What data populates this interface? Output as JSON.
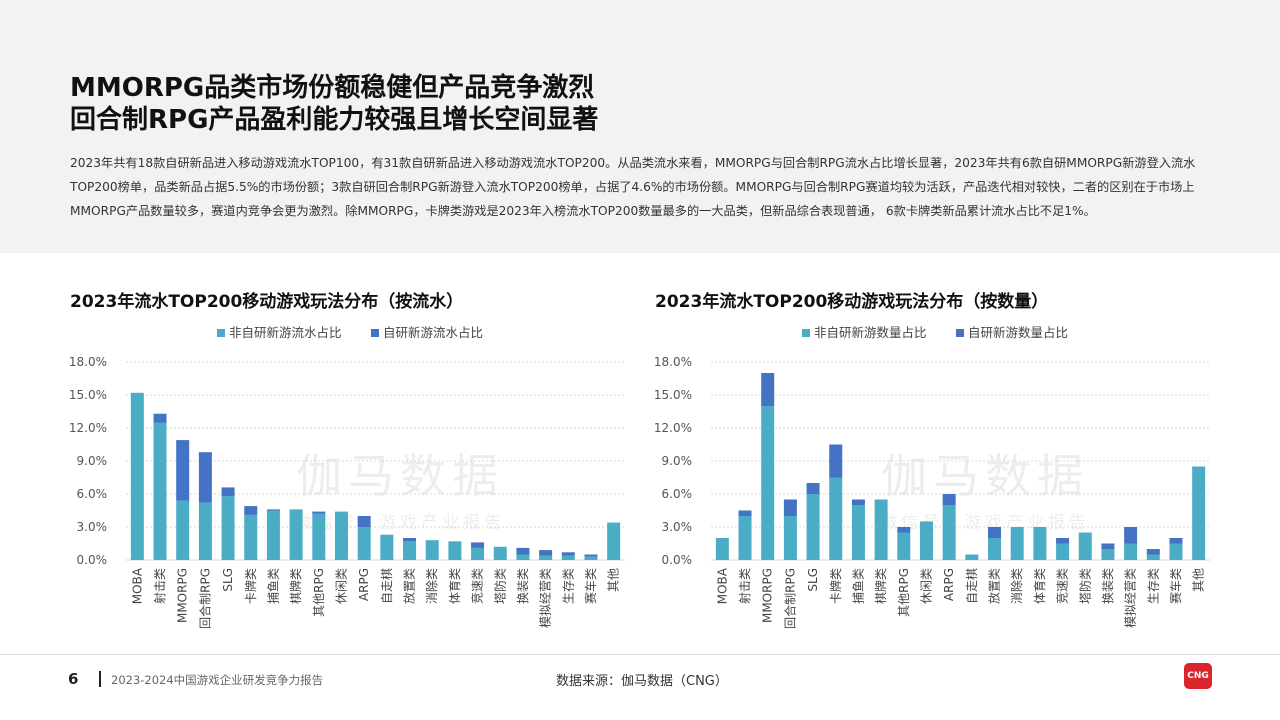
{
  "header": {
    "title_line1": "MMORPG品类市场份额稳健但产品竞争激烈",
    "title_line2": "回合制RPG产品盈利能力较强且增长空间显著",
    "description": "2023年共有18款自研新品进入移动游戏流水TOP100，有31款自研新品进入移动游戏流水TOP200。从品类流水来看，MMORPG与回合制RPG流水占比增长显著，2023年共有6款自研MMORPG新游登入流水TOP200榜单，品类新品占据5.5%的市场份额；3款自研回合制RPG新游登入流水TOP200榜单，占据了4.6%的市场份额。MMORPG与回合制RPG赛道均较为活跃，产品迭代相对较快，二者的区别在于市场上MMORPG产品数量较多，赛道内竞争会更为激烈。除MMORPG，卡牌类游戏是2023年入榜流水TOP200数量最多的一大品类，但新品综合表现普通， 6款卡牌类新品累计流水占比不足1%。"
  },
  "colors": {
    "non_self": "#4bacc6",
    "self": "#4472c4"
  },
  "watermark": {
    "main": "伽马数据",
    "sub": "微信号：游戏产业报告"
  },
  "chart_data": [
    {
      "type": "bar",
      "stacked": true,
      "title": "2023年流水TOP200移动游戏玩法分布（按流水）",
      "categories": [
        "MOBA",
        "射击类",
        "MMORPG",
        "回合制RPG",
        "SLG",
        "卡牌类",
        "捕鱼类",
        "棋牌类",
        "其他RPG",
        "休闲类",
        "ARPG",
        "自走棋",
        "放置类",
        "消除类",
        "体育类",
        "竞速类",
        "塔防类",
        "换装类",
        "模拟经营类",
        "生存类",
        "赛车类",
        "其他"
      ],
      "series": [
        {
          "name": "非自研新游流水占比",
          "values": [
            15.2,
            12.5,
            5.4,
            5.2,
            5.8,
            4.1,
            4.5,
            4.6,
            4.2,
            4.4,
            3.0,
            2.3,
            1.7,
            1.8,
            1.7,
            1.1,
            1.2,
            0.5,
            0.4,
            0.4,
            0.3,
            3.4
          ]
        },
        {
          "name": "自研新游流水占比",
          "values": [
            0,
            0.8,
            5.5,
            4.6,
            0.8,
            0.8,
            0.1,
            0,
            0.2,
            0,
            1.0,
            0,
            0.3,
            0,
            0,
            0.5,
            0,
            0.6,
            0.5,
            0.3,
            0.2,
            0
          ]
        }
      ],
      "yticks": [
        "0.0%",
        "3.0%",
        "6.0%",
        "9.0%",
        "12.0%",
        "15.0%",
        "18.0%"
      ],
      "ylim": [
        0,
        18
      ],
      "legend_position": "top"
    },
    {
      "type": "bar",
      "stacked": true,
      "title": "2023年流水TOP200移动游戏玩法分布（按数量）",
      "categories": [
        "MOBA",
        "射击类",
        "MMORPG",
        "回合制RPG",
        "SLG",
        "卡牌类",
        "捕鱼类",
        "棋牌类",
        "其他RPG",
        "休闲类",
        "ARPG",
        "自走棋",
        "放置类",
        "消除类",
        "体育类",
        "竞速类",
        "塔防类",
        "换装类",
        "模拟经营类",
        "生存类",
        "赛车类",
        "其他"
      ],
      "series": [
        {
          "name": "非自研新游数量占比",
          "values": [
            2.0,
            4.0,
            14.0,
            4.0,
            6.0,
            7.5,
            5.0,
            5.5,
            2.5,
            3.5,
            5.0,
            0.5,
            2.0,
            3.0,
            3.0,
            1.5,
            2.5,
            1.0,
            1.5,
            0.5,
            1.5,
            8.5
          ]
        },
        {
          "name": "自研新游数量占比",
          "values": [
            0,
            0.5,
            3.0,
            1.5,
            1.0,
            3.0,
            0.5,
            0,
            0.5,
            0,
            1.0,
            0,
            1.0,
            0,
            0,
            0.5,
            0,
            0.5,
            1.5,
            0.5,
            0.5,
            0
          ]
        }
      ],
      "yticks": [
        "0.0%",
        "3.0%",
        "6.0%",
        "9.0%",
        "12.0%",
        "15.0%",
        "18.0%"
      ],
      "ylim": [
        0,
        18
      ],
      "legend_position": "top"
    }
  ],
  "footer": {
    "page_number": "6",
    "report_name": "2023-2024中国游戏企业研发竞争力报告",
    "source": "数据来源：伽马数据（CNG）",
    "logo_text": "CNG"
  }
}
